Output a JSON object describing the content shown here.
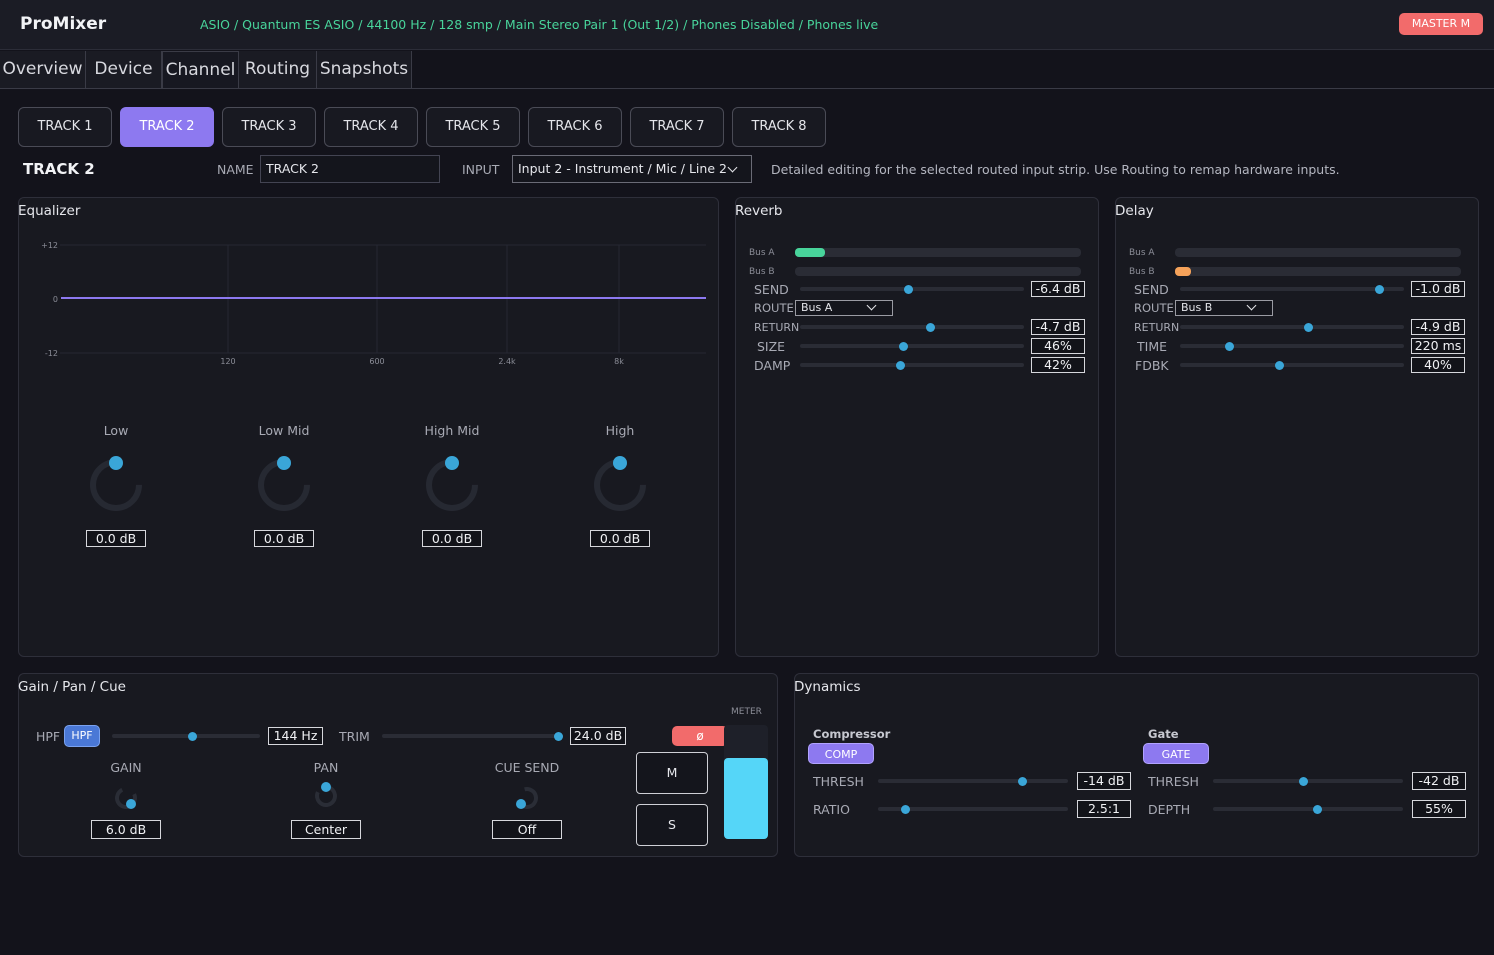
{
  "app": {
    "title": "ProMixer",
    "status": "ASIO / Quantum ES ASIO / 44100 Hz / 128 smp / Main Stereo Pair 1 (Out 1/2) / Phones Disabled / Phones live",
    "master_label": "MASTER M"
  },
  "tabs": [
    {
      "label": "Overview"
    },
    {
      "label": "Device"
    },
    {
      "label": "Channel"
    },
    {
      "label": "Routing"
    },
    {
      "label": "Snapshots"
    }
  ],
  "tracks": [
    {
      "label": "TRACK 1"
    },
    {
      "label": "TRACK 2"
    },
    {
      "label": "TRACK 3"
    },
    {
      "label": "TRACK 4"
    },
    {
      "label": "TRACK 5"
    },
    {
      "label": "TRACK 6"
    },
    {
      "label": "TRACK 7"
    },
    {
      "label": "TRACK 8"
    }
  ],
  "strip": {
    "title": "TRACK 2",
    "name_label": "NAME",
    "name_value": "TRACK 2",
    "input_label": "INPUT",
    "input_value": "Input 2 - Instrument / Mic / Line 2",
    "hint": "Detailed editing for the selected routed input strip. Use Routing to remap hardware inputs."
  },
  "eq": {
    "title": "Equalizer",
    "y_ticks": [
      "+12",
      "0",
      "-12"
    ],
    "x_ticks": [
      "120",
      "600",
      "2.4k",
      "8k"
    ],
    "bands": [
      {
        "name": "Low",
        "value": "0.0 dB"
      },
      {
        "name": "Low Mid",
        "value": "0.0 dB"
      },
      {
        "name": "High Mid",
        "value": "0.0 dB"
      },
      {
        "name": "High",
        "value": "0.0 dB"
      }
    ],
    "line_color": "#8d79f0"
  },
  "reverb": {
    "title": "Reverb",
    "bus_a": "Bus A",
    "bus_b": "Bus B",
    "send_label": "SEND",
    "send_value": "-6.4 dB",
    "route_label": "ROUTE",
    "route_value": "Bus A",
    "return_label": "RETURN",
    "return_value": "-4.7 dB",
    "size_label": "SIZE",
    "size_value": "46%",
    "damp_label": "DAMP",
    "damp_value": "42%",
    "meter_color": "#48d49b"
  },
  "delay": {
    "title": "Delay",
    "bus_a": "Bus A",
    "bus_b": "Bus B",
    "send_label": "SEND",
    "send_value": "-1.0 dB",
    "route_label": "ROUTE",
    "route_value": "Bus B",
    "return_label": "RETURN",
    "return_value": "-4.9 dB",
    "time_label": "TIME",
    "time_value": "220 ms",
    "fdbk_label": "FDBK",
    "fdbk_value": "40%",
    "meter_color": "#f5a25a"
  },
  "gpc": {
    "title": "Gain / Pan / Cue",
    "hpf_label": "HPF",
    "hpf_button": "HPF",
    "hpf_value": "144 Hz",
    "trim_label": "TRIM",
    "trim_value": "24.0 dB",
    "gain_label": "GAIN",
    "gain_value": "6.0 dB",
    "pan_label": "PAN",
    "pan_value": "Center",
    "cue_label": "CUE SEND",
    "cue_value": "Off",
    "phase_label": "ø",
    "meter_label": "METER",
    "mute_label": "M",
    "solo_label": "S",
    "meter_color": "#55d6f8"
  },
  "dynamics": {
    "title": "Dynamics",
    "comp_title": "Compressor",
    "comp_button": "COMP",
    "comp_thresh_label": "THRESH",
    "comp_thresh_value": "-14 dB",
    "ratio_label": "RATIO",
    "ratio_value": "2.5:1",
    "gate_title": "Gate",
    "gate_button": "GATE",
    "gate_thresh_label": "THRESH",
    "gate_thresh_value": "-42 dB",
    "depth_label": "DEPTH",
    "depth_value": "55%"
  }
}
